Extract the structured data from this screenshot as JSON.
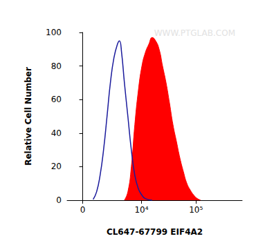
{
  "chart_data": {
    "type": "histogram",
    "xlabel": "CL647-67799 EIF4A2",
    "ylabel": "Relative Cell Number",
    "annotations": [
      {
        "text": "WWW.PTGLAB.COM"
      }
    ],
    "xlim": [
      -1200,
      700000
    ],
    "xticks": [
      0,
      {
        "value": 10000,
        "label": "10⁴"
      },
      {
        "value": 100000,
        "label": "10⁵"
      }
    ],
    "ylim": [
      0,
      100
    ],
    "yticks": [
      0,
      20,
      40,
      60,
      80,
      100
    ],
    "grid": false,
    "series": [
      {
        "type": "line",
        "color": "#1a1a9c",
        "x": [
          770,
          1050,
          1360,
          1690,
          2060,
          2460,
          2940,
          3470,
          3820,
          4200,
          4770,
          5560,
          6470,
          7520,
          8730,
          10200,
          11800,
          15800
        ],
        "values": [
          0.5,
          5,
          15,
          30,
          50,
          70,
          85,
          93,
          95,
          88,
          70,
          50,
          30,
          15,
          7,
          3,
          1,
          0
        ]
      },
      {
        "type": "area",
        "color": "#ff0000",
        "x": [
          4770,
          5560,
          6470,
          7520,
          8730,
          10200,
          11800,
          13700,
          15800,
          18300,
          21200,
          24500,
          28400,
          32800,
          38000,
          44000,
          51000,
          59000,
          68300,
          79000,
          91500,
          106000,
          122000
        ],
        "values": [
          0,
          5,
          20,
          45,
          65,
          80,
          88,
          93,
          97,
          95,
          90,
          80,
          70,
          58,
          45,
          35,
          25,
          17,
          10,
          6,
          3,
          1,
          0
        ]
      }
    ]
  }
}
